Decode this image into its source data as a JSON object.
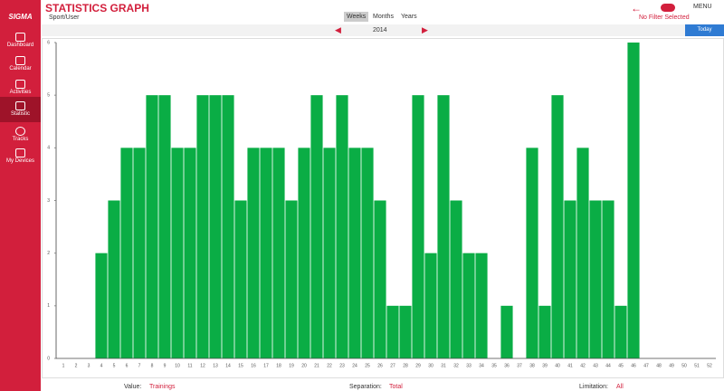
{
  "sidebar": {
    "logo": "SIGMA",
    "items": [
      "Dashboard",
      "Calendar",
      "Activities",
      "Statistic",
      "Tracks",
      "My Devices"
    ]
  },
  "header": {
    "title": "STATISTICS GRAPH",
    "subtitle": "Sport/User",
    "tabs": [
      "Weeks",
      "Months",
      "Years"
    ],
    "filter": "No Filter Selected",
    "menu": "MENU"
  },
  "year_bar": {
    "year": "2014",
    "today": "Today"
  },
  "chart_data": {
    "type": "bar",
    "categories": [
      "1",
      "2",
      "3",
      "4",
      "5",
      "6",
      "7",
      "8",
      "9",
      "10",
      "11",
      "12",
      "13",
      "14",
      "15",
      "16",
      "17",
      "18",
      "19",
      "20",
      "21",
      "22",
      "23",
      "24",
      "25",
      "26",
      "27",
      "28",
      "29",
      "30",
      "31",
      "32",
      "33",
      "34",
      "35",
      "36",
      "37",
      "38",
      "39",
      "40",
      "41",
      "42",
      "43",
      "44",
      "45",
      "46",
      "47",
      "48",
      "49",
      "50",
      "51",
      "52"
    ],
    "values": [
      0,
      0,
      0,
      2,
      3,
      4,
      4,
      5,
      5,
      4,
      4,
      5,
      5,
      5,
      3,
      4,
      4,
      4,
      3,
      4,
      5,
      4,
      5,
      4,
      4,
      3,
      1,
      1,
      5,
      2,
      5,
      3,
      2,
      2,
      0,
      1,
      0,
      4,
      1,
      5,
      3,
      4,
      3,
      3,
      1,
      6,
      0,
      0,
      0,
      0,
      0,
      0
    ],
    "color": "#0aad45",
    "ylim": [
      0,
      6
    ],
    "yticks": [
      0,
      1,
      2,
      3,
      4,
      5,
      6
    ]
  },
  "footer": {
    "value_label": "Value:",
    "value": "Trainings",
    "separation_label": "Separation:",
    "separation": "Total",
    "limitation_label": "Limitation:",
    "limitation": "All"
  }
}
